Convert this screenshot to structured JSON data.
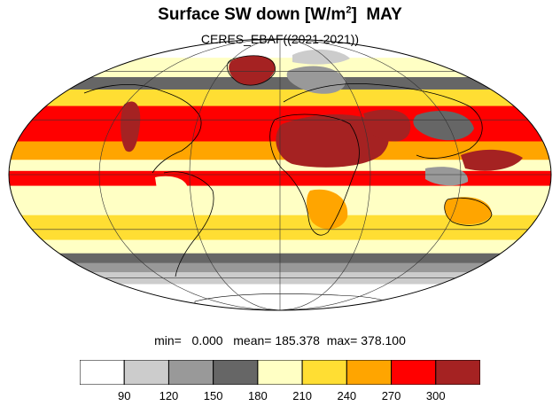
{
  "title": {
    "main": "Surface SW down [W/m",
    "sup": "2",
    "close": "]",
    "month": "MAY"
  },
  "subtitle": "CERES_EBAF((2021-2021))",
  "stats": {
    "min_label": "min=",
    "min": "0.000",
    "mean_label": "mean=",
    "mean": "185.378",
    "max_label": "max=",
    "max": "378.100"
  },
  "colorbar": {
    "colors": [
      "#ffffff",
      "#cccccc",
      "#999999",
      "#666666",
      "#ffffc4",
      "#ffde33",
      "#ffa500",
      "#ff0000",
      "#a52222"
    ],
    "labels": [
      "90",
      "120",
      "150",
      "180",
      "210",
      "240",
      "270",
      "300"
    ]
  },
  "map": {
    "projection": "mollweide",
    "bands": [
      {
        "from": 90,
        "to": 70,
        "color": "#ffde33"
      },
      {
        "from": 70,
        "to": 56,
        "color": "#ffffc4"
      },
      {
        "from": 56,
        "to": 48,
        "color": "#666666"
      },
      {
        "from": 48,
        "to": 38,
        "color": "#ffde33"
      },
      {
        "from": 38,
        "to": 18,
        "color": "#ff0000"
      },
      {
        "from": 18,
        "to": 8,
        "color": "#ffa500"
      },
      {
        "from": 8,
        "to": 2,
        "color": "#ffffc4"
      },
      {
        "from": 2,
        "to": -6,
        "color": "#ff0000"
      },
      {
        "from": -6,
        "to": -22,
        "color": "#ffffc4"
      },
      {
        "from": -22,
        "to": -36,
        "color": "#ffde33"
      },
      {
        "from": -36,
        "to": -44,
        "color": "#ffffc4"
      },
      {
        "from": -44,
        "to": -50,
        "color": "#666666"
      },
      {
        "from": -50,
        "to": -56,
        "color": "#999999"
      },
      {
        "from": -56,
        "to": -64,
        "color": "#cccccc"
      },
      {
        "from": -64,
        "to": -90,
        "color": "#ffffff"
      }
    ]
  }
}
